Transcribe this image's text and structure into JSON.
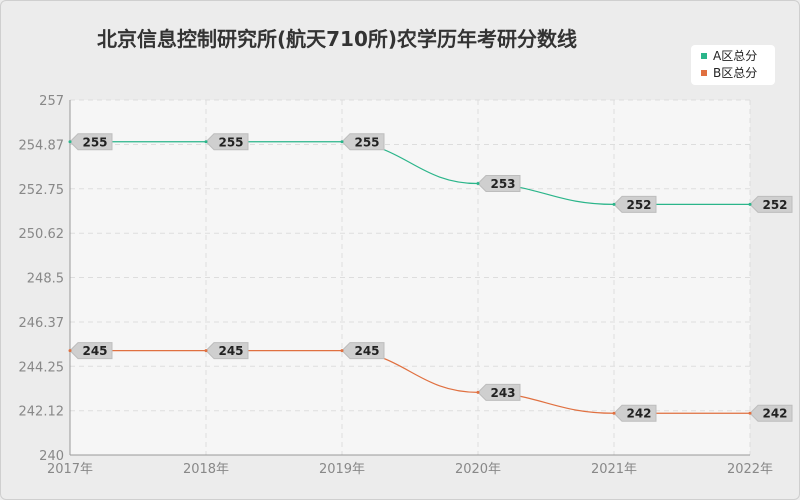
{
  "chart_data": {
    "type": "line",
    "title": "北京信息控制研究所(航天710所)农学历年考研分数线",
    "categories": [
      "2017年",
      "2018年",
      "2019年",
      "2020年",
      "2021年",
      "2022年"
    ],
    "ylim": [
      240,
      257
    ],
    "yticks": [
      "240",
      "242.12",
      "244.25",
      "246.37",
      "248.5",
      "250.62",
      "252.75",
      "254.87",
      "257"
    ],
    "grid": true,
    "legend_position": "top-right",
    "series": [
      {
        "name": "A区总分",
        "color": "#2bb58a",
        "values": [
          255,
          255,
          255,
          253,
          252,
          252
        ]
      },
      {
        "name": "B区总分",
        "color": "#e07040",
        "values": [
          245,
          245,
          245,
          243,
          242,
          242
        ]
      }
    ]
  }
}
